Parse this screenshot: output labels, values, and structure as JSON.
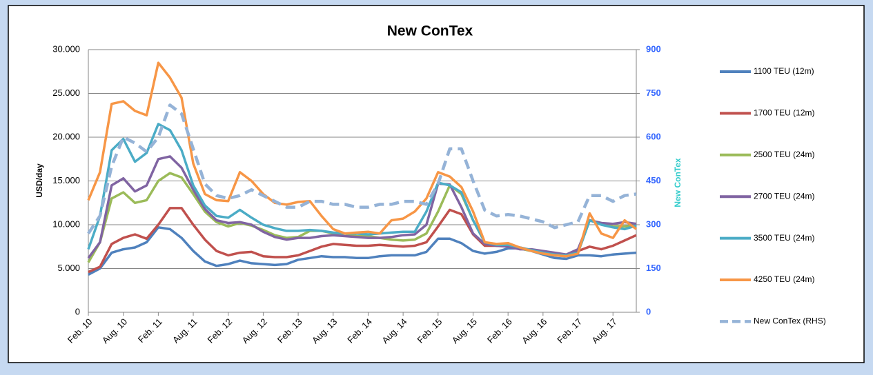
{
  "chart_data": {
    "type": "line",
    "title": "New ConTex",
    "y_label": "USD/day",
    "y2_label": "New ConTex",
    "categories": [
      "Feb. 10",
      null,
      null,
      "Aug. 10",
      null,
      null,
      "Feb. 11",
      null,
      null,
      "Aug. 11",
      null,
      null,
      "Feb. 12",
      null,
      null,
      "Aug. 12",
      null,
      null,
      "Feb. 13",
      null,
      null,
      "Aug. 13",
      null,
      null,
      "Feb. 14",
      null,
      null,
      "Aug. 14",
      null,
      null,
      "Feb. 15",
      null,
      null,
      "Aug. 15",
      null,
      null,
      "Feb. 16",
      null,
      null,
      "Aug. 16",
      null,
      null,
      "Feb. 17",
      null,
      null,
      "Aug. 17",
      null,
      null
    ],
    "ylim": [
      0,
      30000
    ],
    "yticks": [
      0,
      {
        "value": 5000,
        "label": "5.000"
      },
      {
        "value": 10000,
        "label": "10.000"
      },
      {
        "value": 15000,
        "label": "15.000"
      },
      {
        "value": 20000,
        "label": "20.000"
      },
      {
        "value": 25000,
        "label": "25.000"
      },
      {
        "value": 30000,
        "label": "30.000"
      }
    ],
    "y2lim": [
      0,
      900
    ],
    "y2ticks": [
      0,
      150,
      300,
      450,
      600,
      750,
      900
    ],
    "grid": true,
    "legend": "right",
    "series": [
      {
        "name": "1100 TEU (12m)",
        "color": "#4f81bd",
        "values": [
          4300,
          5000,
          6800,
          7200,
          7400,
          8000,
          9700,
          9500,
          8500,
          7000,
          5800,
          5300,
          5500,
          5900,
          5600,
          5500,
          5400,
          5500,
          6000,
          6200,
          6400,
          6300,
          6300,
          6200,
          6200,
          6400,
          6500,
          6500,
          6500,
          6900,
          8400,
          8400,
          7900,
          7000,
          6700,
          6900,
          7300,
          7300,
          7000,
          6600,
          6200,
          6100,
          6500,
          6500,
          6400,
          6600,
          6700,
          6800
        ]
      },
      {
        "name": "1700 TEU (12m)",
        "color": "#c0504d",
        "values": [
          4600,
          5200,
          7800,
          8500,
          8900,
          8400,
          10000,
          11900,
          11900,
          10000,
          8300,
          7000,
          6500,
          6800,
          6900,
          6400,
          6300,
          6300,
          6500,
          7000,
          7500,
          7800,
          7700,
          7600,
          7600,
          7700,
          7600,
          7500,
          7600,
          8000,
          9800,
          11700,
          11200,
          8900,
          7600,
          7600,
          7600,
          7400,
          7100,
          6800,
          6500,
          6500,
          7000,
          7500,
          7200,
          7600,
          8200,
          8800
        ]
      },
      {
        "name": "2500 TEU (24m)",
        "color": "#9bbb59",
        "values": [
          5700,
          8000,
          13000,
          13700,
          12500,
          12800,
          15000,
          15900,
          15400,
          13500,
          11500,
          10300,
          9800,
          10200,
          9900,
          9400,
          8800,
          8500,
          8600,
          9300,
          9300,
          9000,
          9000,
          8700,
          8700,
          8500,
          8300,
          8200,
          8300,
          9000,
          11500,
          14500,
          13500,
          10500,
          8000,
          7600,
          7600,
          7300,
          7000,
          6700,
          6500,
          6400,
          6800,
          10500,
          10200,
          9800,
          9800,
          9900
        ]
      },
      {
        "name": "2700 TEU (24m)",
        "color": "#8064a2",
        "values": [
          6200,
          8000,
          14500,
          15300,
          13800,
          14500,
          17500,
          17800,
          16500,
          14000,
          11800,
          10500,
          10200,
          10300,
          10000,
          9200,
          8600,
          8300,
          8500,
          8500,
          8700,
          8800,
          8700,
          8600,
          8500,
          8500,
          8600,
          8800,
          8900,
          10000,
          14700,
          14600,
          12000,
          9000,
          7800,
          7600,
          7500,
          7200,
          7200,
          7000,
          6800,
          6600,
          7200,
          10500,
          10200,
          10100,
          10300,
          10100
        ]
      },
      {
        "name": "3500 TEU (24m)",
        "color": "#4bacc6",
        "values": [
          7200,
          11000,
          18500,
          19800,
          17200,
          18200,
          21500,
          20800,
          18500,
          14500,
          12200,
          11000,
          10800,
          11700,
          10800,
          10000,
          9600,
          9300,
          9300,
          9400,
          9300,
          9100,
          9000,
          9000,
          8900,
          9000,
          9100,
          9200,
          9200,
          11500,
          14800,
          14500,
          13700,
          10500,
          8000,
          7700,
          7700,
          7400,
          7100,
          6800,
          6600,
          6500,
          6800,
          10500,
          10000,
          9700,
          9500,
          9900
        ]
      },
      {
        "name": "4250 TEU (24m)",
        "color": "#f79646",
        "values": [
          12800,
          16000,
          23800,
          24100,
          23000,
          22500,
          28500,
          26800,
          24500,
          17000,
          13500,
          12800,
          12700,
          16000,
          15000,
          13500,
          12500,
          12300,
          12600,
          12700,
          11000,
          9500,
          9000,
          9100,
          9200,
          9000,
          10500,
          10700,
          11500,
          13000,
          16000,
          15500,
          14300,
          11500,
          8000,
          7800,
          7900,
          7400,
          7000,
          6700,
          6500,
          6400,
          6700,
          11300,
          9000,
          8500,
          10500,
          9500
        ]
      },
      {
        "name": "New ConTex (RHS)",
        "color": "#95b3d7",
        "dashed": true,
        "axis": "y2",
        "values": [
          270,
          330,
          500,
          600,
          580,
          550,
          600,
          710,
          680,
          560,
          440,
          400,
          390,
          400,
          420,
          400,
          380,
          360,
          360,
          380,
          380,
          370,
          370,
          360,
          360,
          370,
          370,
          380,
          380,
          370,
          440,
          560,
          560,
          450,
          350,
          330,
          335,
          330,
          320,
          310,
          290,
          300,
          310,
          400,
          400,
          380,
          400,
          405
        ]
      }
    ]
  }
}
